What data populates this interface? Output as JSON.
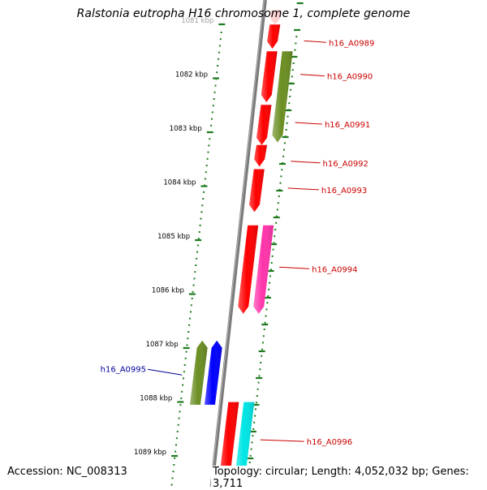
{
  "title": "Ralstonia eutropha H16 chromosome 1, complete genome",
  "accession_text": "Accession: NC_008313",
  "topology_text": "Topology: circular; Length: 4,052,032 bp; Genes: 3,711",
  "colors": {
    "backbone": "#7a7a7a",
    "tick": "#1f7a1f",
    "ruler_dot": "#1f7a1f",
    "forward_label": "#cc0000",
    "reverse_label": "#000099",
    "label_leader_forward": "#cc0000",
    "label_leader_reverse": "#000099"
  },
  "ruler": {
    "unit": "kbp",
    "ticks": [
      {
        "kbp": 1081,
        "label": "1081 kbp"
      },
      {
        "kbp": 1082,
        "label": "1082 kbp"
      },
      {
        "kbp": 1083,
        "label": "1083 kbp"
      },
      {
        "kbp": 1084,
        "label": "1084 kbp"
      },
      {
        "kbp": 1085,
        "label": "1085 kbp"
      },
      {
        "kbp": 1086,
        "label": "1086 kbp"
      },
      {
        "kbp": 1087,
        "label": "1087 kbp"
      },
      {
        "kbp": 1088,
        "label": "1088 kbp"
      },
      {
        "kbp": 1089,
        "label": "1089 kbp"
      }
    ]
  },
  "features": [
    {
      "id": "f0",
      "name": "",
      "strand": "+",
      "start": 1080.78,
      "end": 1081.05,
      "track": 0,
      "color": "#ff9999",
      "faded": true
    },
    {
      "id": "f1",
      "name": "h16_A0989",
      "strand": "+",
      "start": 1081.05,
      "end": 1081.5,
      "track": 0,
      "color": "#ff0000",
      "labelled": true
    },
    {
      "id": "f2",
      "name": "h16_A0990",
      "strand": "+",
      "start": 1081.55,
      "end": 1082.5,
      "track": 0,
      "color": "#ff0000",
      "labelled": true
    },
    {
      "id": "f3",
      "name": "",
      "strand": "+",
      "start": 1081.55,
      "end": 1083.25,
      "track": 1,
      "color": "#6b8e23",
      "labelled": false
    },
    {
      "id": "f4",
      "name": "h16_A0991",
      "strand": "+",
      "start": 1082.55,
      "end": 1083.3,
      "track": 0,
      "color": "#ff0000",
      "labelled": true
    },
    {
      "id": "f5",
      "name": "h16_A0992",
      "strand": "+",
      "start": 1083.3,
      "end": 1083.7,
      "track": 0,
      "color": "#ff0000",
      "labelled": true
    },
    {
      "id": "f6",
      "name": "h16_A0993",
      "strand": "+",
      "start": 1083.75,
      "end": 1084.55,
      "track": 0,
      "color": "#ff0000",
      "labelled": true
    },
    {
      "id": "f7",
      "name": "h16_A0994",
      "strand": "+",
      "start": 1084.8,
      "end": 1086.45,
      "track": 0,
      "color": "#ff0000",
      "labelled": true
    },
    {
      "id": "f8",
      "name": "",
      "strand": "+",
      "start": 1084.8,
      "end": 1086.45,
      "track": 1,
      "color": "#ff33aa",
      "labelled": false
    },
    {
      "id": "f9",
      "name": "h16_A0995",
      "strand": "-",
      "start": 1086.95,
      "end": 1088.15,
      "track": 1,
      "color": "#6b8e23",
      "labelled": false
    },
    {
      "id": "f10",
      "name": "",
      "strand": "-",
      "start": 1086.95,
      "end": 1088.15,
      "track": 0,
      "color": "#0000ff",
      "labelled": true
    },
    {
      "id": "f11",
      "name": "h16_A0996",
      "strand": "+",
      "start": 1088.1,
      "end": 1089.6,
      "track": 0,
      "color": "#ff0000",
      "labelled": true
    },
    {
      "id": "f12",
      "name": "",
      "strand": "+",
      "start": 1088.1,
      "end": 1089.6,
      "track": 1,
      "color": "#00e5e5",
      "labelled": false
    }
  ]
}
